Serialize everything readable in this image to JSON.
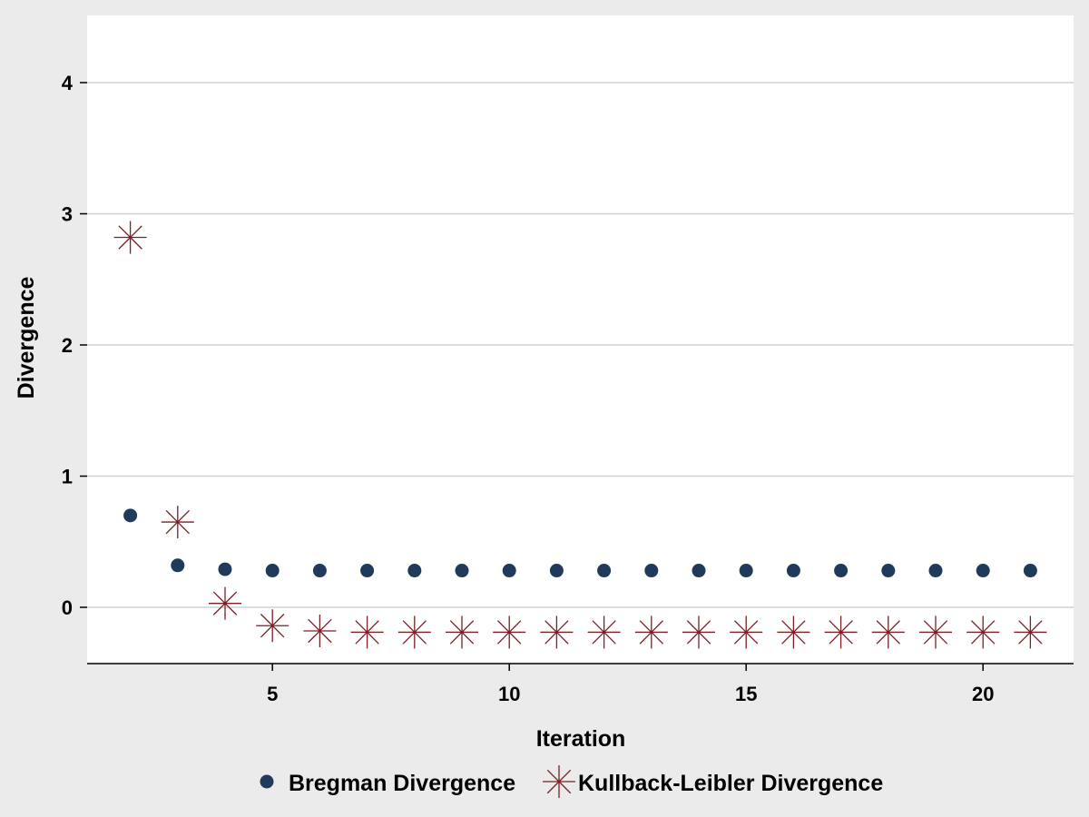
{
  "chart_data": {
    "type": "scatter",
    "title": "",
    "xlabel": "Iteration",
    "ylabel": "Divergence",
    "xlim": [
      1,
      22
    ],
    "ylim": [
      -0.43,
      4.5
    ],
    "xticks": [
      5,
      10,
      15,
      20
    ],
    "yticks": [
      0,
      1,
      2,
      3,
      4
    ],
    "xtick_labels": [
      "5",
      "10",
      "15",
      "20"
    ],
    "ytick_labels": [
      "0",
      "1",
      "2",
      "3",
      "4"
    ],
    "grid": true,
    "legend_position": "bottom",
    "series": [
      {
        "name": "Bregman Divergence",
        "marker": "circle",
        "color": "#1f3a5a",
        "x": [
          2,
          3,
          4,
          5,
          6,
          7,
          8,
          9,
          10,
          11,
          12,
          13,
          14,
          15,
          16,
          17,
          18,
          19,
          20,
          21
        ],
        "y": [
          0.7,
          0.32,
          0.29,
          0.28,
          0.28,
          0.28,
          0.28,
          0.28,
          0.28,
          0.28,
          0.28,
          0.28,
          0.28,
          0.28,
          0.28,
          0.28,
          0.28,
          0.28,
          0.28,
          0.28
        ]
      },
      {
        "name": "Kullback-Leibler Divergence",
        "marker": "asterisk",
        "color": "#7a1f24",
        "x": [
          2,
          3,
          4,
          5,
          6,
          7,
          8,
          9,
          10,
          11,
          12,
          13,
          14,
          15,
          16,
          17,
          18,
          19,
          20,
          21
        ],
        "y": [
          2.82,
          0.65,
          0.03,
          -0.14,
          -0.18,
          -0.19,
          -0.19,
          -0.19,
          -0.19,
          -0.19,
          -0.19,
          -0.19,
          -0.19,
          -0.19,
          -0.19,
          -0.19,
          -0.19,
          -0.19,
          -0.19,
          -0.19
        ]
      }
    ]
  }
}
